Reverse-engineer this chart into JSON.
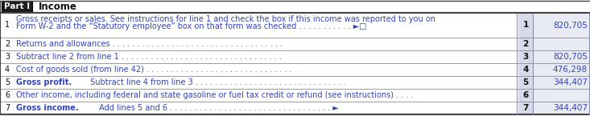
{
  "title_label": "Part I",
  "title_text": "Income",
  "header_bg": "#1c1c1c",
  "row_bg": "#ffffff",
  "value_col_bg": "#e8eaf4",
  "line_num_col_bg": "#d8dae8",
  "border_color": "#8888aa",
  "dark_border": "#444444",
  "text_color": "#111111",
  "blue_text": "#3344bb",
  "value_text_color": "#3344bb",
  "rows": [
    {
      "num": "1",
      "line1": "Gross receipts or sales. See instructions for line 1 and check the box if this income was reported to you on",
      "line2": "Form W-2 and the “Statutory employee” box on that form was checked . . . . . . . . . . . ►□",
      "value": "820,705",
      "bold_prefix": "",
      "two_line": true
    },
    {
      "num": "2",
      "line1": "Returns and allowances . . . . . . . . . . . . . . . . . . . . . . . . . . . . . . . . . . .",
      "line2": "",
      "value": "",
      "bold_prefix": "",
      "two_line": false
    },
    {
      "num": "3",
      "line1": "Subtract line 2 from line 1 . . . . . . . . . . . . . . . . . . . . . . . . . . . . . . . . .",
      "line2": "",
      "value": "820,705",
      "bold_prefix": "",
      "two_line": false
    },
    {
      "num": "4",
      "line1": "Cost of goods sold (from line 42) . . . . . . . . . . . . . . . . . . . . . . . . . . . . . .",
      "line2": "",
      "value": "476,298",
      "bold_prefix": "",
      "two_line": false
    },
    {
      "num": "5",
      "line1": " Subtract line 4 from line 3 . . . . . . . . . . . . . . . . . . . . . . . . . . . . . . .",
      "line2": "",
      "value": "344,407",
      "bold_prefix": "Gross profit.",
      "two_line": false
    },
    {
      "num": "6",
      "line1": "Other income, including federal and state gasoline or fuel tax credit or refund (see instructions) . . . .",
      "line2": "",
      "value": "",
      "bold_prefix": "",
      "two_line": false
    },
    {
      "num": "7",
      "line1": " Add lines 5 and 6 . . . . . . . . . . . . . . . . . . . . . . . . . . . . . . . . . ►",
      "line2": "",
      "value": "344,407",
      "bold_prefix": "Gross income.",
      "two_line": false
    }
  ],
  "figwidth": 7.33,
  "figheight": 1.5,
  "dpi": 100
}
